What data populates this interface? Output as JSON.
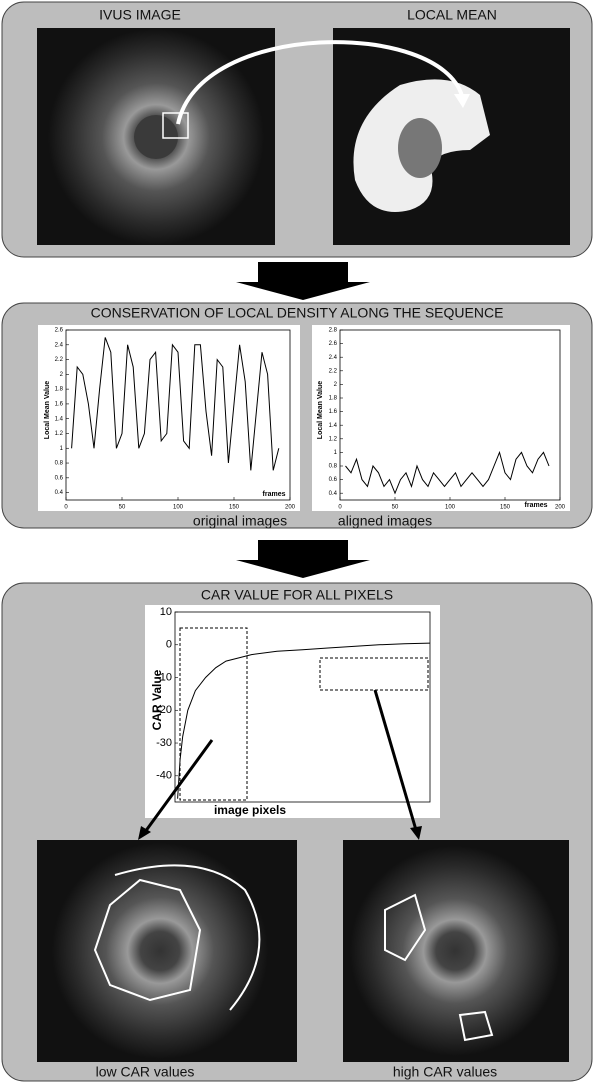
{
  "top": {
    "left_label": "IVUS IMAGE",
    "right_label": "LOCAL MEAN"
  },
  "middle": {
    "title": "CONSERVATION OF LOCAL DENSITY ALONG THE SEQUENCE",
    "charts": [
      {
        "type": "line",
        "ylabel": "Local Mean Value",
        "xlabel": "frames",
        "x": [
          5,
          10,
          15,
          20,
          25,
          30,
          35,
          40,
          45,
          50,
          55,
          60,
          65,
          70,
          75,
          80,
          85,
          90,
          95,
          100,
          105,
          110,
          115,
          120,
          125,
          130,
          135,
          140,
          145,
          150,
          155,
          160,
          165,
          170,
          175,
          180,
          185,
          190
        ],
        "values": [
          1.0,
          2.1,
          2.0,
          1.6,
          1.0,
          1.8,
          2.5,
          2.3,
          1.0,
          1.2,
          2.4,
          2.1,
          1.0,
          1.2,
          2.2,
          2.3,
          1.1,
          1.2,
          2.4,
          2.3,
          1.1,
          1.0,
          2.4,
          2.4,
          1.5,
          0.9,
          2.2,
          2.1,
          0.8,
          1.6,
          2.4,
          1.9,
          0.7,
          1.5,
          2.3,
          2.0,
          0.7,
          1.0
        ],
        "xlim": [
          0,
          200
        ],
        "ylim": [
          0.3,
          2.6
        ],
        "xticks": [
          0,
          50,
          100,
          150,
          200
        ],
        "yticks": [
          0.4,
          0.6,
          0.8,
          1,
          1.2,
          1.4,
          1.6,
          1.8,
          2,
          2.2,
          2.4,
          2.6
        ],
        "color": "#000000"
      },
      {
        "type": "line",
        "ylabel": "Local Mean Value",
        "xlabel": "frames",
        "x": [
          5,
          10,
          15,
          20,
          25,
          30,
          35,
          40,
          45,
          50,
          55,
          60,
          65,
          70,
          75,
          80,
          85,
          90,
          95,
          100,
          105,
          110,
          115,
          120,
          125,
          130,
          135,
          140,
          145,
          150,
          155,
          160,
          165,
          170,
          175,
          180,
          185,
          190
        ],
        "values": [
          0.8,
          0.7,
          0.9,
          0.6,
          0.5,
          0.8,
          0.7,
          0.5,
          0.6,
          0.4,
          0.6,
          0.7,
          0.5,
          0.8,
          0.6,
          0.5,
          0.7,
          0.6,
          0.5,
          0.6,
          0.7,
          0.5,
          0.6,
          0.7,
          0.6,
          0.5,
          0.6,
          0.8,
          1.0,
          0.7,
          0.6,
          0.9,
          1.0,
          0.8,
          0.7,
          0.9,
          1.0,
          0.8
        ],
        "xlim": [
          0,
          200
        ],
        "ylim": [
          0.3,
          2.8
        ],
        "xticks": [
          0,
          50,
          100,
          150,
          200
        ],
        "yticks": [
          0.4,
          0.6,
          0.8,
          1,
          1.2,
          1.4,
          1.6,
          1.8,
          2,
          2.2,
          2.4,
          2.6,
          2.8
        ],
        "color": "#000000"
      }
    ],
    "captions": [
      "original images",
      "aligned images"
    ]
  },
  "bottom": {
    "title": "CAR VALUE FOR ALL PIXELS",
    "chart": {
      "type": "line",
      "ylabel": "CAR Value",
      "xlabel": "image pixels",
      "x": [
        1,
        2,
        3,
        5,
        8,
        12,
        16,
        20,
        25,
        30,
        40,
        50,
        60,
        70,
        80,
        90,
        100
      ],
      "values": [
        -47,
        -35,
        -28,
        -20,
        -14,
        -10,
        -7,
        -5,
        -4,
        -3,
        -2,
        -1.5,
        -1,
        -0.5,
        0,
        0.3,
        0.5
      ],
      "xlim": [
        0,
        100
      ],
      "ylim": [
        -48,
        10
      ],
      "yticks": [
        -40,
        -30,
        -20,
        -10,
        0,
        10
      ],
      "color": "#000000"
    },
    "captions": [
      "low CAR values",
      "high CAR values"
    ]
  }
}
